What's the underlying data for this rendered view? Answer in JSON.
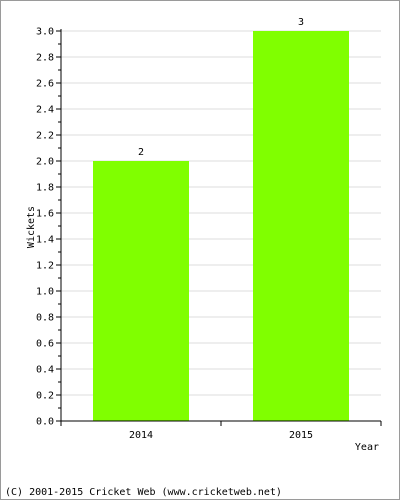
{
  "chart_data": {
    "type": "bar",
    "categories": [
      "2014",
      "2015"
    ],
    "values": [
      2,
      3
    ],
    "data_labels": [
      "2",
      "3"
    ],
    "xlabel": "Year",
    "ylabel": "Wickets",
    "ylim": [
      0,
      3.0
    ],
    "y_ticks": [
      "0.0",
      "0.2",
      "0.4",
      "0.6",
      "0.8",
      "1.0",
      "1.2",
      "1.4",
      "1.6",
      "1.8",
      "2.0",
      "2.2",
      "2.4",
      "2.6",
      "2.8",
      "3.0"
    ],
    "grid": true,
    "bar_color": "#80ff00",
    "grid_color": "#dddddd"
  },
  "footer": {
    "copyright": "(C) 2001-2015 Cricket Web (www.cricketweb.net)"
  }
}
